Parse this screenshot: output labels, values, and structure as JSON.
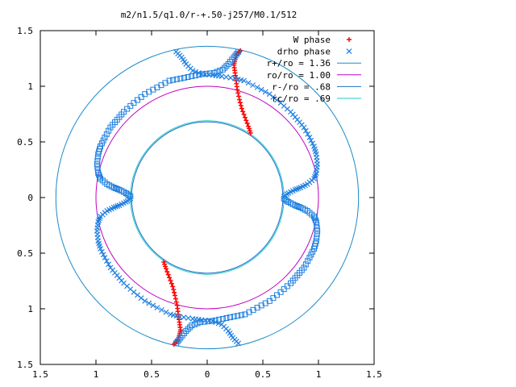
{
  "chart_data": {
    "type": "scatter",
    "title": "m2/n1.5/q1.0/r-+.50-j257/M0.1/512",
    "xlim": [
      -1.5,
      1.5
    ],
    "ylim": [
      -1.5,
      1.5
    ],
    "x_ticks": [
      "1.5",
      "1",
      "0.5",
      "0",
      "0.5",
      "1",
      "1.5"
    ],
    "y_ticks": [
      "1.5",
      "1",
      "0.5",
      "0",
      "0.5",
      "1",
      "1.5"
    ],
    "legend_position": "top-right",
    "grid": false,
    "series": [
      {
        "name": "W phase",
        "kind": "points",
        "marker": "plus",
        "color": "#ff0000",
        "points": [
          [
            0.39,
            0.58
          ],
          [
            0.37,
            0.64
          ],
          [
            0.34,
            0.72
          ],
          [
            0.31,
            0.8
          ],
          [
            0.29,
            0.88
          ],
          [
            0.27,
            0.97
          ],
          [
            0.26,
            1.05
          ],
          [
            0.25,
            1.12
          ],
          [
            0.24,
            1.19
          ],
          [
            0.25,
            1.24
          ],
          [
            0.27,
            1.29
          ],
          [
            0.3,
            1.32
          ],
          [
            -0.39,
            -0.58
          ],
          [
            -0.37,
            -0.64
          ],
          [
            -0.34,
            -0.72
          ],
          [
            -0.31,
            -0.8
          ],
          [
            -0.29,
            -0.88
          ],
          [
            -0.27,
            -0.97
          ],
          [
            -0.26,
            -1.05
          ],
          [
            -0.25,
            -1.12
          ],
          [
            -0.24,
            -1.19
          ],
          [
            -0.25,
            -1.24
          ],
          [
            -0.27,
            -1.29
          ],
          [
            -0.3,
            -1.32
          ]
        ]
      },
      {
        "name": "drho phase",
        "kind": "points",
        "marker": "x",
        "color": "#1e7fe0",
        "points": [
          [
            -0.28,
            1.31
          ],
          [
            -0.23,
            1.26
          ],
          [
            -0.19,
            1.2
          ],
          [
            -0.13,
            1.14
          ],
          [
            -0.05,
            1.11
          ],
          [
            0.05,
            1.1
          ],
          [
            0.13,
            1.09
          ],
          [
            0.25,
            1.07
          ],
          [
            0.33,
            1.05
          ],
          [
            0.45,
            0.99
          ],
          [
            0.56,
            0.93
          ],
          [
            0.66,
            0.85
          ],
          [
            0.75,
            0.77
          ],
          [
            0.81,
            0.7
          ],
          [
            0.87,
            0.63
          ],
          [
            0.92,
            0.54
          ],
          [
            0.96,
            0.46
          ],
          [
            0.98,
            0.39
          ],
          [
            0.99,
            0.3
          ],
          [
            0.98,
            0.22
          ],
          [
            0.96,
            0.17
          ],
          [
            0.9,
            0.12
          ],
          [
            0.84,
            0.09
          ],
          [
            0.79,
            0.07
          ],
          [
            0.73,
            0.04
          ],
          [
            0.69,
            0.01
          ]
        ]
      },
      {
        "name": "drho phase (square)",
        "kind": "points",
        "marker": "square",
        "color": "#1e7fe0",
        "points": [
          [
            0.28,
            1.31
          ],
          [
            0.24,
            1.26
          ],
          [
            0.19,
            1.2
          ],
          [
            0.14,
            1.15
          ],
          [
            0.06,
            1.12
          ],
          [
            -0.04,
            1.11
          ],
          [
            -0.14,
            1.09
          ],
          [
            -0.24,
            1.07
          ],
          [
            -0.34,
            1.05
          ],
          [
            -0.45,
            0.99
          ],
          [
            -0.56,
            0.93
          ],
          [
            -0.66,
            0.85
          ],
          [
            -0.75,
            0.77
          ],
          [
            -0.81,
            0.7
          ],
          [
            -0.87,
            0.63
          ],
          [
            -0.92,
            0.54
          ],
          [
            -0.96,
            0.46
          ],
          [
            -0.98,
            0.39
          ],
          [
            -0.99,
            0.3
          ],
          [
            -0.98,
            0.22
          ],
          [
            -0.96,
            0.17
          ],
          [
            -0.9,
            0.12
          ],
          [
            -0.84,
            0.09
          ],
          [
            -0.79,
            0.07
          ],
          [
            -0.73,
            0.04
          ],
          [
            -0.69,
            0.01
          ]
        ]
      },
      {
        "name": "r+/ro = 1.36",
        "kind": "circle",
        "radius": 1.36,
        "color": "#1a8ac9"
      },
      {
        "name": "ro/ro = 1.00",
        "kind": "circle",
        "radius": 1.0,
        "color": "#c000c0"
      },
      {
        "name": "r-/ro = .68",
        "kind": "circle",
        "radius": 0.68,
        "color": "#1f6fc5"
      },
      {
        "name": "rc/ro = .69",
        "kind": "circle",
        "radius": 0.69,
        "color": "#20c8c8"
      }
    ],
    "legend": [
      {
        "label": "W phase",
        "marker": "plus",
        "color": "#ff0000"
      },
      {
        "label": "drho phase",
        "marker": "x",
        "color": "#1e7fe0"
      },
      {
        "label": "r+/ro = 1.36",
        "marker": "line",
        "color": "#1a8ac9"
      },
      {
        "label": "ro/ro = 1.00",
        "marker": "line",
        "color": "#c000c0"
      },
      {
        "label": "r-/ro = .68",
        "marker": "line",
        "color": "#1f6fc5"
      },
      {
        "label": "rc/ro = .69",
        "marker": "line",
        "color": "#20c8c8"
      }
    ]
  }
}
